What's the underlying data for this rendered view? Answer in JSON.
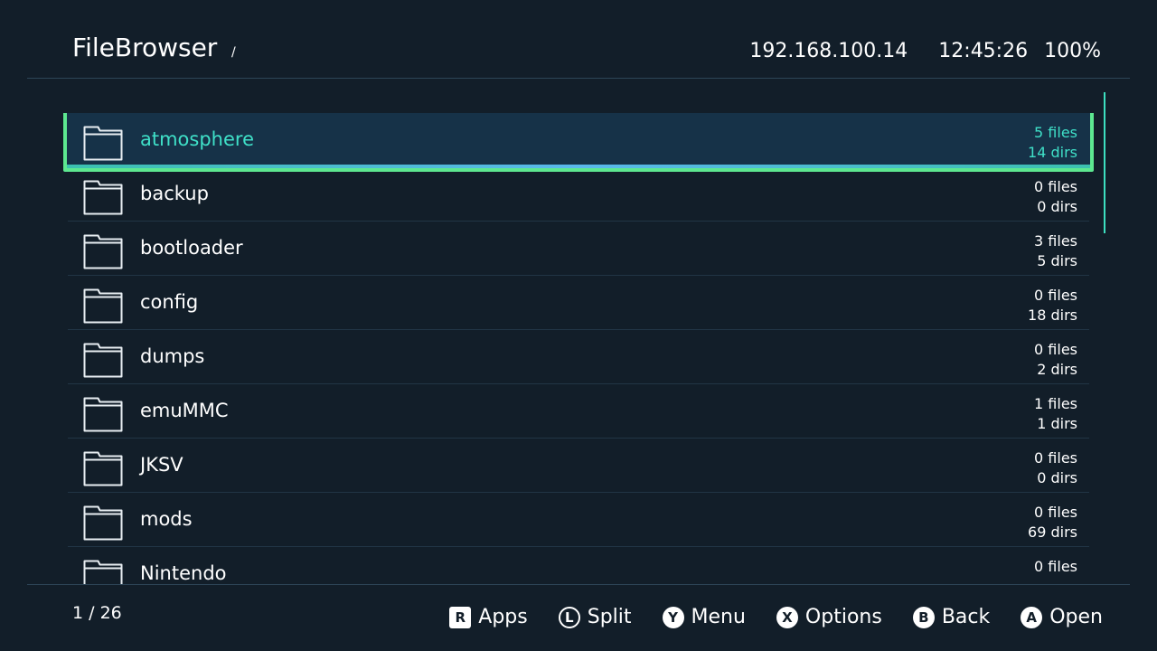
{
  "header": {
    "title": "FileBrowser",
    "path": "/",
    "ip": "192.168.100.14",
    "time": "12:45:26",
    "battery": "100%"
  },
  "colors": {
    "background": "#121e29",
    "selection_border": "#5de890",
    "selection_text": "#3fe0c8",
    "scrollbar": "#3de0c0"
  },
  "list": [
    {
      "name": "atmosphere",
      "files": "5 files",
      "dirs": "14 dirs",
      "icon": "folder-icon",
      "selected": true
    },
    {
      "name": "backup",
      "files": "0 files",
      "dirs": "0 dirs",
      "icon": "folder-icon"
    },
    {
      "name": "bootloader",
      "files": "3 files",
      "dirs": "5 dirs",
      "icon": "folder-icon"
    },
    {
      "name": "config",
      "files": "0 files",
      "dirs": "18 dirs",
      "icon": "folder-icon"
    },
    {
      "name": "dumps",
      "files": "0 files",
      "dirs": "2 dirs",
      "icon": "folder-icon"
    },
    {
      "name": "emuMMC",
      "files": "1 files",
      "dirs": "1 dirs",
      "icon": "folder-icon"
    },
    {
      "name": "JKSV",
      "files": "0 files",
      "dirs": "0 dirs",
      "icon": "folder-icon"
    },
    {
      "name": "mods",
      "files": "0 files",
      "dirs": "69 dirs",
      "icon": "folder-icon"
    },
    {
      "name": "Nintendo",
      "files": "0 files",
      "icon": "folder-icon"
    }
  ],
  "footer": {
    "page": "1 / 26",
    "buttons": [
      {
        "glyph": "R",
        "label": "Apps",
        "icon": "r-button-icon"
      },
      {
        "glyph": "L",
        "label": "Split",
        "icon": "left-stick-press-icon"
      },
      {
        "glyph": "Y",
        "label": "Menu",
        "icon": "y-button-icon"
      },
      {
        "glyph": "X",
        "label": "Options",
        "icon": "x-button-icon"
      },
      {
        "glyph": "B",
        "label": "Back",
        "icon": "b-button-icon"
      },
      {
        "glyph": "A",
        "label": "Open",
        "icon": "a-button-icon"
      }
    ]
  }
}
